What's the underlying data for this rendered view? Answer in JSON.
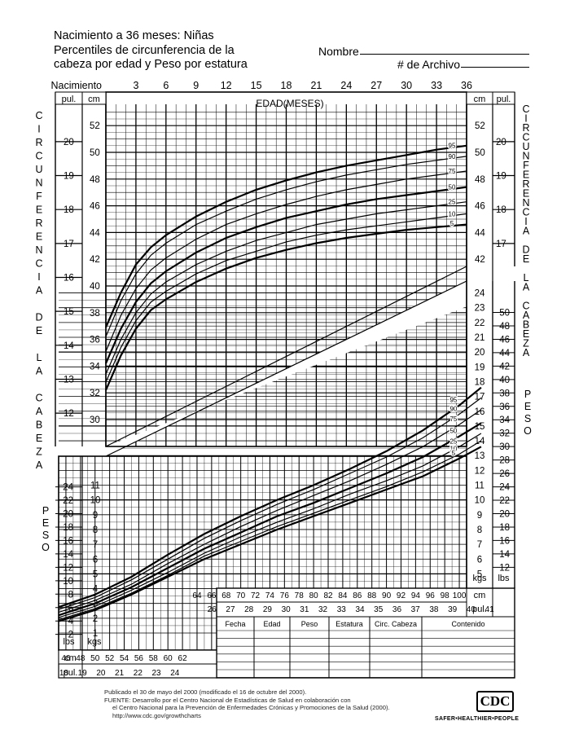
{
  "header": {
    "title_lines": [
      "Nacimiento a 36 meses: Niñas",
      "Percentiles de circunferencia de la",
      "cabeza por edad y Peso por estatura"
    ],
    "nombre_label": "Nombre",
    "archivo_label": "# de Archivo"
  },
  "chart_data": [
    {
      "type": "line",
      "title": "Percentiles de circunferencia de la cabeza por edad",
      "xlabel": "EDAD(MESES)",
      "ylabel": "CIRCUNFERENCIA DE LA CABEZA",
      "x_ticks": [
        "Nacimiento",
        "3",
        "6",
        "9",
        "12",
        "15",
        "18",
        "21",
        "24",
        "27",
        "30",
        "33",
        "36"
      ],
      "xlim": [
        0,
        36
      ],
      "y_unit_cm": "cm",
      "y_unit_in": "pul.",
      "ylim_cm": [
        29.3,
        53.5
      ],
      "cm_ticks": [
        30,
        32,
        34,
        36,
        38,
        40,
        42,
        44,
        46,
        48,
        50,
        52
      ],
      "in_ticks": [
        12,
        13,
        14,
        15,
        16,
        17,
        18,
        19,
        20
      ],
      "x": [
        0,
        1.5,
        3,
        4.5,
        6,
        9,
        12,
        15,
        18,
        21,
        24,
        27,
        30,
        33,
        36
      ],
      "series": [
        {
          "name": "95",
          "values": [
            36.9,
            39.5,
            41.6,
            42.9,
            43.8,
            45.2,
            46.3,
            47.2,
            47.9,
            48.5,
            49.0,
            49.4,
            49.8,
            50.2,
            50.5
          ]
        },
        {
          "name": "90",
          "values": [
            36.2,
            38.9,
            40.9,
            42.3,
            43.2,
            44.6,
            45.6,
            46.5,
            47.2,
            47.8,
            48.3,
            48.7,
            49.1,
            49.4,
            49.7
          ]
        },
        {
          "name": "75",
          "values": [
            35.1,
            37.8,
            39.8,
            41.2,
            42.1,
            43.5,
            44.6,
            45.4,
            46.1,
            46.7,
            47.2,
            47.6,
            48.0,
            48.3,
            48.6
          ]
        },
        {
          "name": "50",
          "values": [
            34.2,
            36.8,
            38.8,
            40.2,
            41.1,
            42.5,
            43.6,
            44.4,
            45.1,
            45.6,
            46.1,
            46.5,
            46.8,
            47.1,
            47.4
          ]
        },
        {
          "name": "25",
          "values": [
            33.4,
            36.0,
            38.0,
            39.4,
            40.3,
            41.6,
            42.6,
            43.4,
            44.0,
            44.6,
            45.0,
            45.4,
            45.7,
            46.0,
            46.3
          ]
        },
        {
          "name": "10",
          "values": [
            32.8,
            35.4,
            37.4,
            38.8,
            39.6,
            40.9,
            41.9,
            42.6,
            43.3,
            43.8,
            44.2,
            44.5,
            44.8,
            45.1,
            45.4
          ]
        },
        {
          "name": "5",
          "values": [
            32.2,
            34.8,
            36.8,
            38.2,
            39.0,
            40.3,
            41.3,
            42.1,
            42.7,
            43.2,
            43.6,
            43.9,
            44.2,
            44.4,
            44.6
          ]
        }
      ]
    },
    {
      "type": "line",
      "title": "Peso por estatura",
      "xlabel": "",
      "ylabel": "PESO",
      "x_unit_cm": "cm",
      "x_unit_in": "pul.",
      "xlim_cm": [
        45,
        101
      ],
      "x_ticks_cm": [
        46,
        48,
        50,
        52,
        54,
        56,
        58,
        60,
        62,
        64,
        66,
        68,
        70,
        72,
        74,
        76,
        78,
        80,
        82,
        84,
        86,
        88,
        90,
        92,
        94,
        96,
        98,
        100
      ],
      "x_ticks_in": [
        18,
        19,
        20,
        21,
        22,
        23,
        24,
        26,
        27,
        28,
        29,
        30,
        31,
        32,
        33,
        34,
        35,
        36,
        37,
        38,
        39,
        40,
        41
      ],
      "y_unit_kg": "kgs",
      "y_unit_lb": "lbs",
      "ylim_kg": [
        0.7,
        24.5
      ],
      "kg_ticks": [
        1,
        2,
        3,
        4,
        5,
        6,
        7,
        8,
        9,
        10,
        11,
        12,
        13,
        14,
        15,
        16,
        17,
        18,
        19,
        20,
        21,
        22,
        23,
        24
      ],
      "lb_ticks": [
        2,
        4,
        6,
        8,
        10,
        12,
        14,
        16,
        18,
        20,
        22,
        24,
        26,
        28,
        30,
        32,
        34,
        36,
        38,
        40,
        42,
        44,
        46,
        48,
        50
      ],
      "x": [
        45,
        50,
        55,
        60,
        65,
        70,
        75,
        80,
        85,
        90,
        95,
        100,
        103
      ],
      "series": [
        {
          "name": "95",
          "values": [
            2.75,
            3.6,
            4.8,
            6.3,
            7.7,
            8.9,
            10.0,
            11.0,
            12.1,
            13.3,
            14.7,
            16.4,
            17.6
          ]
        },
        {
          "name": "90",
          "values": [
            2.6,
            3.4,
            4.6,
            6.0,
            7.4,
            8.6,
            9.7,
            10.7,
            11.8,
            12.9,
            14.2,
            15.8,
            16.9
          ]
        },
        {
          "name": "75",
          "values": [
            2.4,
            3.2,
            4.3,
            5.7,
            7.0,
            8.2,
            9.3,
            10.3,
            11.3,
            12.4,
            13.6,
            15.1,
            16.1
          ]
        },
        {
          "name": "50",
          "values": [
            2.2,
            3.0,
            4.1,
            5.4,
            6.7,
            7.8,
            8.9,
            9.8,
            10.8,
            11.8,
            12.9,
            14.3,
            15.2
          ]
        },
        {
          "name": "25",
          "values": [
            2.05,
            2.8,
            3.9,
            5.1,
            6.4,
            7.5,
            8.5,
            9.4,
            10.4,
            11.3,
            12.3,
            13.6,
            14.5
          ]
        },
        {
          "name": "10",
          "values": [
            1.9,
            2.65,
            3.7,
            4.9,
            6.2,
            7.2,
            8.2,
            9.1,
            10.0,
            10.9,
            11.9,
            13.1,
            14.0
          ]
        },
        {
          "name": "5",
          "values": [
            1.8,
            2.55,
            3.6,
            4.8,
            6.0,
            7.0,
            8.0,
            8.9,
            9.8,
            10.7,
            11.6,
            12.8,
            13.6
          ]
        }
      ]
    }
  ],
  "side_labels": {
    "left_head": "CIRCUNFERENCIA DE LA CABEZA",
    "right_head": "CIRCUNFERENCIA DE LA CABEZA",
    "left_weight": "PESO",
    "right_weight": "PESO"
  },
  "record_table": {
    "headers": [
      "Fecha",
      "Edad",
      "Peso",
      "Estatura",
      "Circ. Cabeza",
      "Contenido"
    ]
  },
  "footer": {
    "lines": [
      "Publicado el 30 de mayo del 2000 (modificado el 16 de octubre del 2000).",
      "FUENTE: Desarrollo por el Centro Nacional de Estadísticas de Salud en colaboración con",
      "el Centro Nacional para la Prevención de Enfermedades Crónicas y Promociones de la Salud (2000).",
      "http://www.cdc.gov/growthcharts"
    ],
    "logo_text": "CDC",
    "tagline": "SAFER•HEALTHIER•PEOPLE"
  }
}
